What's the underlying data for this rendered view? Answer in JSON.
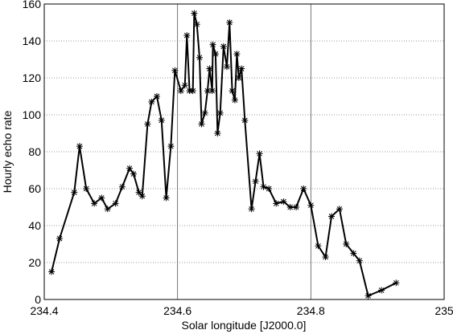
{
  "chart_data": {
    "type": "line",
    "xlabel": "Solar longitude [J2000.0]",
    "ylabel": "Hourly echo rate",
    "x": [
      234.411,
      234.423,
      234.445,
      234.453,
      234.463,
      234.475,
      234.486,
      234.495,
      234.507,
      234.517,
      234.528,
      234.534,
      234.542,
      234.547,
      234.555,
      234.561,
      234.569,
      234.576,
      234.583,
      234.59,
      234.596,
      234.605,
      234.611,
      234.614,
      234.618,
      234.623,
      234.625,
      234.629,
      234.633,
      234.636,
      234.641,
      234.645,
      234.648,
      234.652,
      234.653,
      234.657,
      234.66,
      234.664,
      234.669,
      234.674,
      234.678,
      234.682,
      234.686,
      234.689,
      234.692,
      234.696,
      234.701,
      234.711,
      234.717,
      234.723,
      234.729,
      234.737,
      234.748,
      234.759,
      234.769,
      234.778,
      234.789,
      234.8,
      234.811,
      234.822,
      234.831,
      234.843,
      234.853,
      234.864,
      234.873,
      234.886,
      234.906,
      234.928
    ],
    "values": [
      15,
      33,
      58,
      83,
      60,
      52,
      55,
      49,
      52,
      61,
      71,
      68,
      58,
      56,
      95,
      107,
      110,
      97,
      55,
      83,
      124,
      113,
      116,
      143,
      113,
      113,
      155,
      149,
      131,
      95,
      101,
      113,
      125,
      113,
      138,
      133,
      90,
      101,
      137,
      126,
      150,
      113,
      108,
      133,
      120,
      125,
      97,
      49,
      64,
      79,
      61,
      60,
      52,
      53,
      50,
      50,
      60,
      51,
      29,
      23,
      45,
      49,
      30,
      25,
      21,
      2,
      5,
      9
    ],
    "color": "#000000",
    "xlim": [
      234.4,
      235
    ],
    "xticks": [
      234.4,
      234.6,
      234.8,
      235
    ],
    "ylim": [
      0,
      160
    ],
    "yticks": [
      0,
      20,
      40,
      60,
      80,
      100,
      120,
      140,
      160
    ],
    "grid": true
  }
}
